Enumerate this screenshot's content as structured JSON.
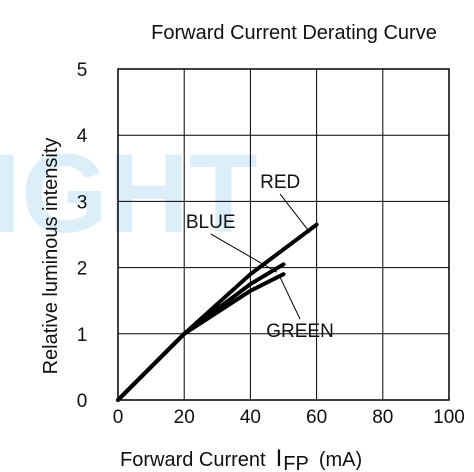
{
  "chart_data": {
    "type": "line",
    "title": "Forward Current Derating Curve",
    "xlabel": "Forward Current",
    "xlabel_symbol": "I",
    "xlabel_subscript": "FP",
    "xlabel_unit": "(mA)",
    "ylabel": "Relative luminous intensity",
    "xlim": [
      0,
      100
    ],
    "ylim": [
      0,
      5
    ],
    "x_ticks": [
      "0",
      "20",
      "40",
      "60",
      "80",
      "100"
    ],
    "y_ticks": [
      "0",
      "1",
      "2",
      "3",
      "4",
      "5"
    ],
    "grid": true,
    "watermark": "IGHT",
    "series": [
      {
        "name": "RED",
        "x": [
          0,
          20,
          40,
          60
        ],
        "y": [
          0,
          1.0,
          1.9,
          2.65
        ]
      },
      {
        "name": "BLUE",
        "x": [
          0,
          20,
          40,
          50
        ],
        "y": [
          0,
          1.0,
          1.75,
          2.05
        ]
      },
      {
        "name": "GREEN",
        "x": [
          0,
          20,
          40,
          50
        ],
        "y": [
          0,
          1.0,
          1.65,
          1.9
        ]
      }
    ]
  }
}
